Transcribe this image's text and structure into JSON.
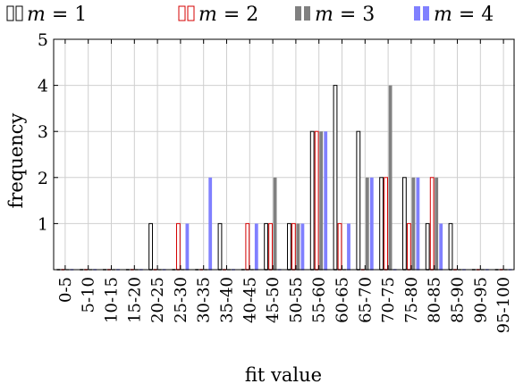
{
  "chart_data": {
    "type": "bar",
    "title": "",
    "xlabel": "fit value",
    "ylabel": "frequency",
    "ylim": [
      0,
      5
    ],
    "yticks": [
      "1",
      "2",
      "3",
      "4",
      "5"
    ],
    "grid": true,
    "legend_position": "top",
    "categories": [
      "0-5",
      "5-10",
      "10-15",
      "15-20",
      "20-25",
      "25-30",
      "30-35",
      "35-40",
      "40-45",
      "45-50",
      "50-55",
      "55-60",
      "60-65",
      "65-70",
      "70-75",
      "75-80",
      "80-85",
      "85-90",
      "90-95",
      "95-100"
    ],
    "series": [
      {
        "name": "m = 1",
        "label_var": "m",
        "label_val": "= 1",
        "style": "outline",
        "color": "#000000",
        "values": [
          0,
          0,
          0,
          0,
          1,
          0,
          0,
          1,
          0,
          1,
          1,
          3,
          4,
          3,
          2,
          2,
          1,
          1,
          0,
          0
        ]
      },
      {
        "name": "m = 2",
        "label_var": "m",
        "label_val": "= 2",
        "style": "outline",
        "color": "#d40000",
        "values": [
          0,
          0,
          0,
          0,
          0,
          1,
          0,
          0,
          1,
          1,
          1,
          3,
          1,
          0,
          2,
          1,
          2,
          0,
          0,
          0
        ]
      },
      {
        "name": "m = 3",
        "label_var": "m",
        "label_val": "= 3",
        "style": "filled",
        "color": "#808080",
        "values": [
          0,
          0,
          0,
          0,
          0,
          0,
          0,
          0,
          0,
          2,
          1,
          3,
          0,
          2,
          4,
          2,
          2,
          0,
          0,
          0
        ]
      },
      {
        "name": "m = 4",
        "label_var": "m",
        "label_val": "= 4",
        "style": "filled",
        "color": "#8080ff",
        "values": [
          0,
          0,
          0,
          0,
          0,
          1,
          2,
          0,
          1,
          0,
          1,
          3,
          1,
          2,
          0,
          2,
          1,
          0,
          0,
          0
        ]
      }
    ]
  }
}
